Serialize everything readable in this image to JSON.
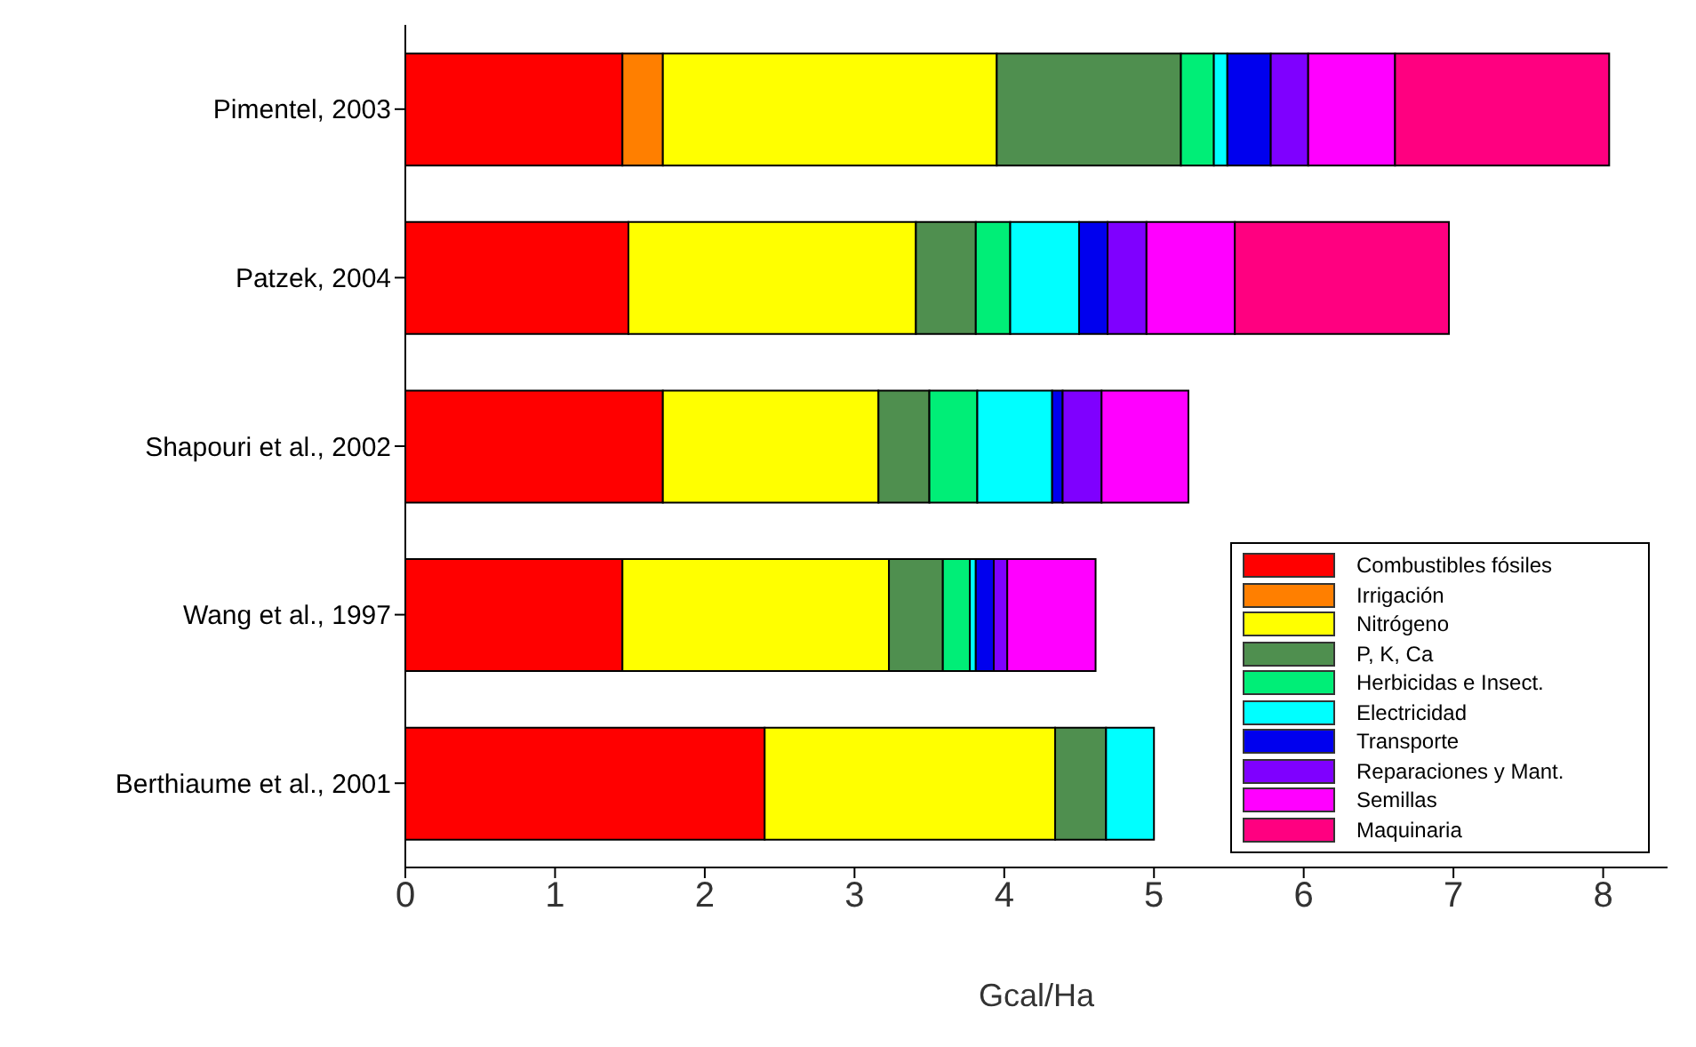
{
  "chart_data": {
    "type": "bar",
    "orientation": "horizontal",
    "stacked": true,
    "xlabel": "Gcal/Ha",
    "categories": [
      "Pimentel, 2003",
      "Patzek, 2004",
      "Shapouri et al., 2002",
      "Wang et al., 1997",
      "Berthiaume et al., 2001"
    ],
    "series": [
      {
        "name": "Combustibles fósiles",
        "color": "#ff0000",
        "values": [
          1.45,
          1.49,
          1.72,
          1.45,
          2.4
        ]
      },
      {
        "name": "Irrigación",
        "color": "#ff7f00",
        "values": [
          0.27,
          0,
          0,
          0,
          0
        ]
      },
      {
        "name": "Nitrógeno",
        "color": "#ffff00",
        "values": [
          2.23,
          1.92,
          1.44,
          1.78,
          1.94
        ]
      },
      {
        "name": "P, K, Ca",
        "color": "#4f8f4f",
        "values": [
          1.23,
          0.4,
          0.34,
          0.36,
          0.34
        ]
      },
      {
        "name": "Herbicidas e Insect.",
        "color": "#00ee77",
        "values": [
          0.22,
          0.23,
          0.32,
          0.18,
          0
        ]
      },
      {
        "name": "Electricidad",
        "color": "#00ffff",
        "values": [
          0.09,
          0.46,
          0.5,
          0.04,
          0.32
        ]
      },
      {
        "name": "Transporte",
        "color": "#0000ee",
        "values": [
          0.29,
          0.19,
          0.07,
          0.12,
          0
        ]
      },
      {
        "name": "Reparaciones y Mant.",
        "color": "#7f00ff",
        "values": [
          0.25,
          0.26,
          0.26,
          0.09,
          0
        ]
      },
      {
        "name": "Semillas",
        "color": "#ff00ff",
        "values": [
          0.58,
          0.59,
          0.58,
          0.59,
          0
        ]
      },
      {
        "name": "Maquinaria",
        "color": "#ff0080",
        "values": [
          1.43,
          1.43,
          0,
          0,
          0
        ]
      }
    ],
    "xlim": [
      0,
      8.43
    ],
    "xticks": [
      0,
      1,
      2,
      3,
      4,
      5,
      6,
      7,
      8
    ],
    "legend": "bottom right"
  }
}
